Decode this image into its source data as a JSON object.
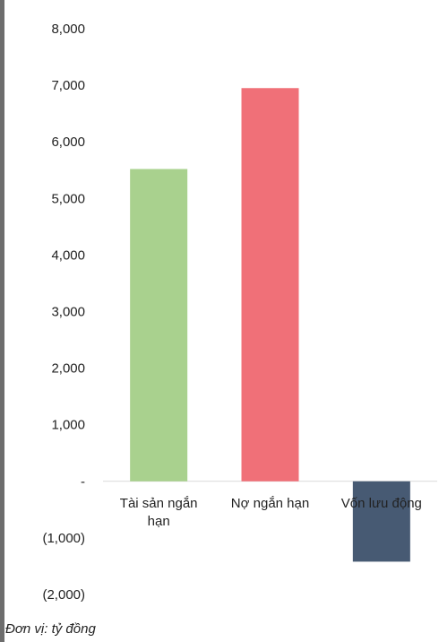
{
  "chart_data": {
    "type": "bar",
    "categories": [
      "Tài sản ngắn hạn",
      "Nợ ngắn hạn",
      "Vốn lưu động"
    ],
    "values": [
      5520,
      6950,
      -1420
    ],
    "colors": [
      "#a9d18e",
      "#f07078",
      "#475a73"
    ],
    "ylim": [
      -2000,
      8000
    ],
    "yticks": [
      8000,
      7000,
      6000,
      5000,
      4000,
      3000,
      2000,
      1000,
      0,
      -1000,
      -2000
    ],
    "ytick_labels": [
      "8,000",
      "7,000",
      "6,000",
      "5,000",
      "4,000",
      "3,000",
      "2,000",
      "1,000",
      "-",
      "(1,000)",
      "(2,000)"
    ],
    "category_label_lines": [
      [
        "Tài sản ngắn",
        "hạn"
      ],
      [
        "Nợ ngắn hạn"
      ],
      [
        "Vốn lưu động"
      ]
    ],
    "grid": false,
    "legend": "none"
  },
  "footnote": "Đơn vị: tỷ đồng"
}
